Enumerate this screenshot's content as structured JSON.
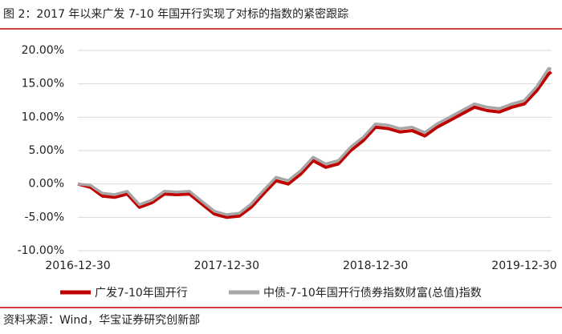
{
  "chart_data": {
    "type": "line",
    "title": "图 2：2017 年以来广发 7-10 年国开行实现了对标的指数的紧密跟踪",
    "source": "资料来源：Wind，华宝证券研究创新部",
    "x": [
      "2016-12-30",
      "2017-01-30",
      "2017-02-28",
      "2017-03-30",
      "2017-04-30",
      "2017-05-30",
      "2017-06-30",
      "2017-07-30",
      "2017-08-30",
      "2017-09-30",
      "2017-10-30",
      "2017-11-30",
      "2017-12-30",
      "2018-01-30",
      "2018-02-28",
      "2018-03-30",
      "2018-04-30",
      "2018-05-30",
      "2018-06-30",
      "2018-07-30",
      "2018-08-30",
      "2018-09-30",
      "2018-10-30",
      "2018-11-30",
      "2018-12-30",
      "2019-01-30",
      "2019-02-28",
      "2019-03-30",
      "2019-04-30",
      "2019-05-30",
      "2019-06-30",
      "2019-07-30",
      "2019-08-30",
      "2019-09-30",
      "2019-10-30",
      "2019-11-30",
      "2019-12-30",
      "2020-01-30",
      "2020-02-28",
      "2020-03-05"
    ],
    "series": [
      {
        "name": "广发7-10年国开行",
        "color": "#c00000",
        "values": [
          0,
          -0.5,
          -1.8,
          -2.0,
          -1.5,
          -3.5,
          -2.8,
          -1.5,
          -1.6,
          -1.5,
          -3.0,
          -4.5,
          -5.0,
          -4.8,
          -3.5,
          -1.5,
          0.5,
          0,
          1.5,
          3.5,
          2.5,
          3.0,
          5.0,
          6.5,
          8.5,
          8.3,
          7.8,
          8.0,
          7.2,
          8.5,
          9.5,
          10.5,
          11.5,
          11.0,
          10.8,
          11.5,
          12.0,
          14.0,
          16.5,
          16.8
        ]
      },
      {
        "name": "中债-7-10年国开行债券指数财富(总值)指数",
        "color": "#a6a6a6",
        "values": [
          0,
          -0.2,
          -1.4,
          -1.6,
          -1.1,
          -3.1,
          -2.4,
          -1.1,
          -1.2,
          -1.1,
          -2.6,
          -4.1,
          -4.6,
          -4.4,
          -3.0,
          -1.0,
          1.0,
          0.5,
          2.0,
          4.0,
          3.0,
          3.5,
          5.5,
          7.0,
          9.0,
          8.8,
          8.3,
          8.5,
          7.7,
          9.0,
          10.0,
          11.0,
          12.0,
          11.5,
          11.3,
          12.0,
          12.5,
          14.6,
          17.3,
          17.2
        ]
      }
    ],
    "xlim": [
      "2016-12-30",
      "2020-03-06"
    ],
    "xticks": [
      "2016-12-30",
      "2017-12-30",
      "2018-12-30",
      "2019-12-30"
    ],
    "ylim": [
      -10,
      20
    ],
    "yticks": [
      {
        "value": -10,
        "label": "-10.00%"
      },
      {
        "value": -5,
        "label": "-5.00%"
      },
      {
        "value": 0,
        "label": "0.00%"
      },
      {
        "value": 5,
        "label": "5.00%"
      },
      {
        "value": 10,
        "label": "10.00%"
      },
      {
        "value": 15,
        "label": "15.00%"
      },
      {
        "value": 20,
        "label": "20.00%"
      }
    ],
    "grid": true
  }
}
